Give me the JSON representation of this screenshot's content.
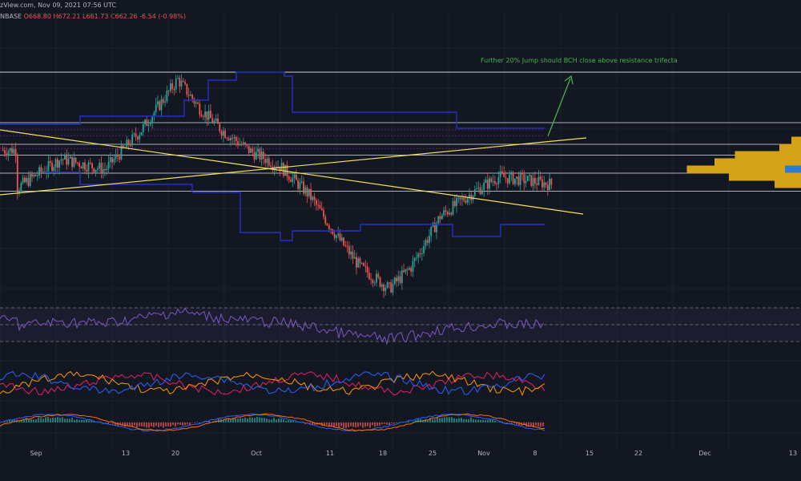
{
  "header": {
    "source": "zView.com, Nov 09, 2021 07:56 UTC",
    "exchange": "NBASE",
    "open": "O668.80",
    "high": "H672.21",
    "low": "L661.73",
    "close": "C662.26",
    "change": "-6.54 (-0.98%)"
  },
  "colors": {
    "background": "#131722",
    "grid": "#1e222d",
    "up": "#26a69a",
    "down": "#ef5350",
    "trendline": "#f5e05a",
    "channel": "#2531c9",
    "resistance": "#e0e3eb",
    "rsi": "#7e57c2",
    "volume_profile": "#d4a216",
    "volume_profile_hi": "#2b7bd1",
    "annotation": "#4caf50"
  },
  "annotation": {
    "text": "Further 20% Jump should BCH close above resistance trifecta"
  },
  "chart_data": {
    "type": "candlestick",
    "x_ticks": [
      "Sep",
      "13",
      "20",
      "Oct",
      "11",
      "18",
      "25",
      "Nov",
      "8",
      "15",
      "22",
      "Dec",
      "13"
    ],
    "price_path": [
      [
        -2,
        610
      ],
      [
        4,
        650
      ],
      [
        10,
        635
      ],
      [
        15,
        690
      ],
      [
        20,
        760
      ],
      [
        23,
        720
      ],
      [
        26,
        690
      ],
      [
        30,
        660
      ],
      [
        34,
        640
      ],
      [
        38,
        600
      ],
      [
        42,
        540
      ],
      [
        45,
        500
      ],
      [
        49,
        470
      ],
      [
        52,
        500
      ],
      [
        56,
        570
      ],
      [
        60,
        600
      ],
      [
        64,
        625
      ],
      [
        68,
        620
      ],
      [
        71,
        615
      ],
      [
        75,
        605
      ],
      [
        79,
        585
      ],
      [
        83,
        560
      ],
      [
        86,
        565
      ],
      [
        89,
        585
      ],
      [
        92,
        605
      ],
      [
        95,
        640
      ],
      [
        97,
        662
      ]
    ],
    "levels": [
      770,
      700,
      670,
      655,
      630,
      605
    ],
    "rsi_bands": [
      70,
      50,
      30
    ],
    "volume_profile": [
      {
        "price": 675,
        "volume": 0.08
      },
      {
        "price": 665,
        "volume": 0.18
      },
      {
        "price": 655,
        "volume": 0.55
      },
      {
        "price": 645,
        "volume": 0.72
      },
      {
        "price": 635,
        "volume": 0.95,
        "highlight": true
      },
      {
        "price": 625,
        "volume": 0.6
      },
      {
        "price": 615,
        "volume": 0.22
      }
    ]
  }
}
